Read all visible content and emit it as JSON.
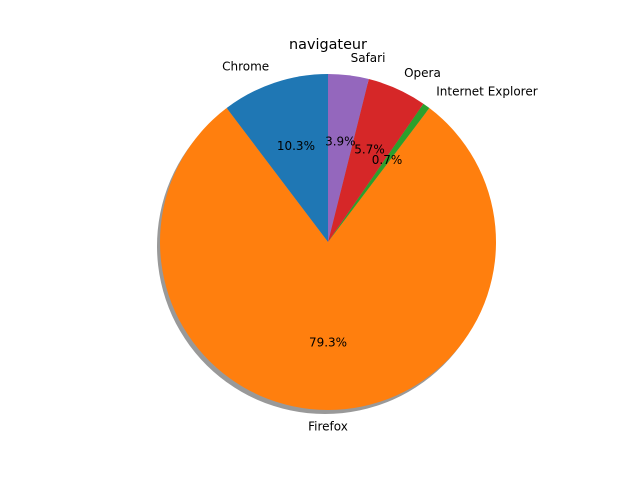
{
  "chart_data": {
    "type": "pie",
    "title": "navigateur",
    "categories": [
      "Chrome",
      "Firefox",
      "Internet Explorer",
      "Opera",
      "Safari"
    ],
    "values": [
      10.3,
      79.3,
      0.7,
      5.7,
      3.9
    ],
    "value_labels": [
      "10.3%",
      "79.3%",
      "0.7%",
      "5.7%",
      "3.9%"
    ],
    "colors": [
      "#1f77b4",
      "#ff7f0e",
      "#2ca02c",
      "#d62728",
      "#9467bd"
    ],
    "start_angle_deg": 90,
    "direction": "counterclockwise",
    "shadow": true,
    "legend": "none"
  }
}
